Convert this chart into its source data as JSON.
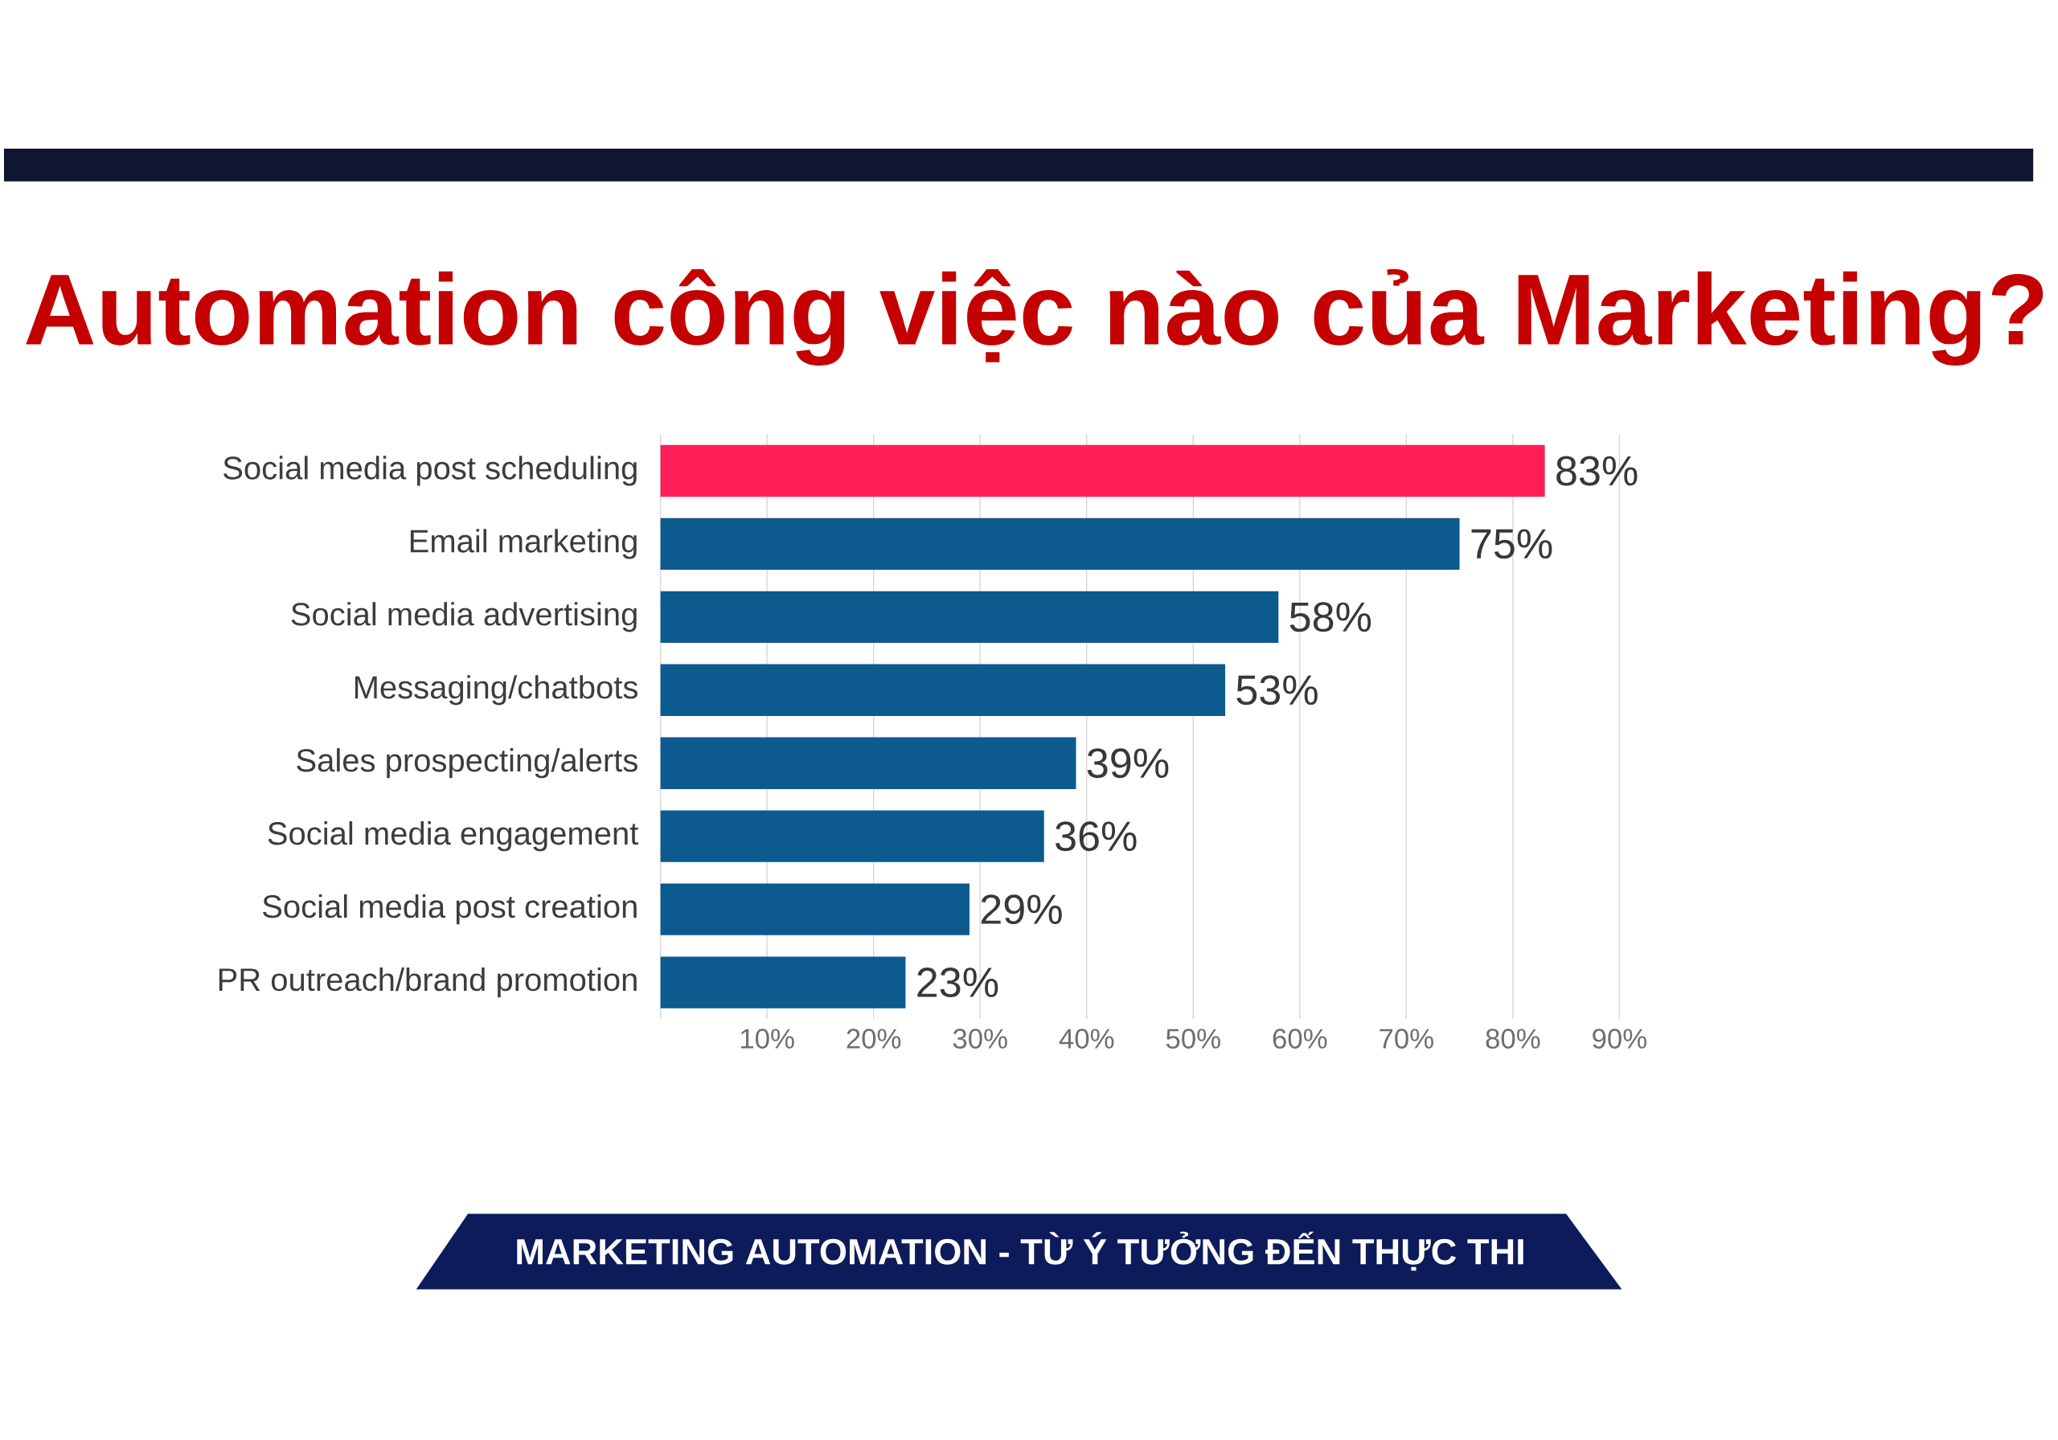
{
  "chart_data": {
    "type": "bar",
    "orientation": "horizontal",
    "title": "Automation công việc nào của Marketing?",
    "categories": [
      "Social media post scheduling",
      "Email marketing",
      "Social media advertising",
      "Messaging/chatbots",
      "Sales prospecting/alerts",
      "Social media engagement",
      "Social media post creation",
      "PR outreach/brand promotion"
    ],
    "values": [
      83,
      75,
      58,
      53,
      39,
      36,
      29,
      23
    ],
    "colors": [
      "#fe1f58",
      "#0d5a8f",
      "#0d5a8f",
      "#0d5a8f",
      "#0d5a8f",
      "#0d5a8f",
      "#0d5a8f",
      "#0d5a8f"
    ],
    "value_labels": [
      "83%",
      "75%",
      "58%",
      "53%",
      "39%",
      "36%",
      "29%",
      "23%"
    ],
    "xlim": [
      0,
      90
    ],
    "xticks": [
      {
        "value": 10,
        "label": "10%"
      },
      {
        "value": 20,
        "label": "20%"
      },
      {
        "value": 30,
        "label": "30%"
      },
      {
        "value": 40,
        "label": "40%"
      },
      {
        "value": 50,
        "label": "50%"
      },
      {
        "value": 60,
        "label": "60%"
      },
      {
        "value": 70,
        "label": "70%"
      },
      {
        "value": 80,
        "label": "80%"
      },
      {
        "value": 90,
        "label": "90%"
      }
    ],
    "grid": "x",
    "annotations": [
      "MARKETING AUTOMATION - TỪ Ý TƯỞNG ĐẾN THỰC THI"
    ]
  }
}
